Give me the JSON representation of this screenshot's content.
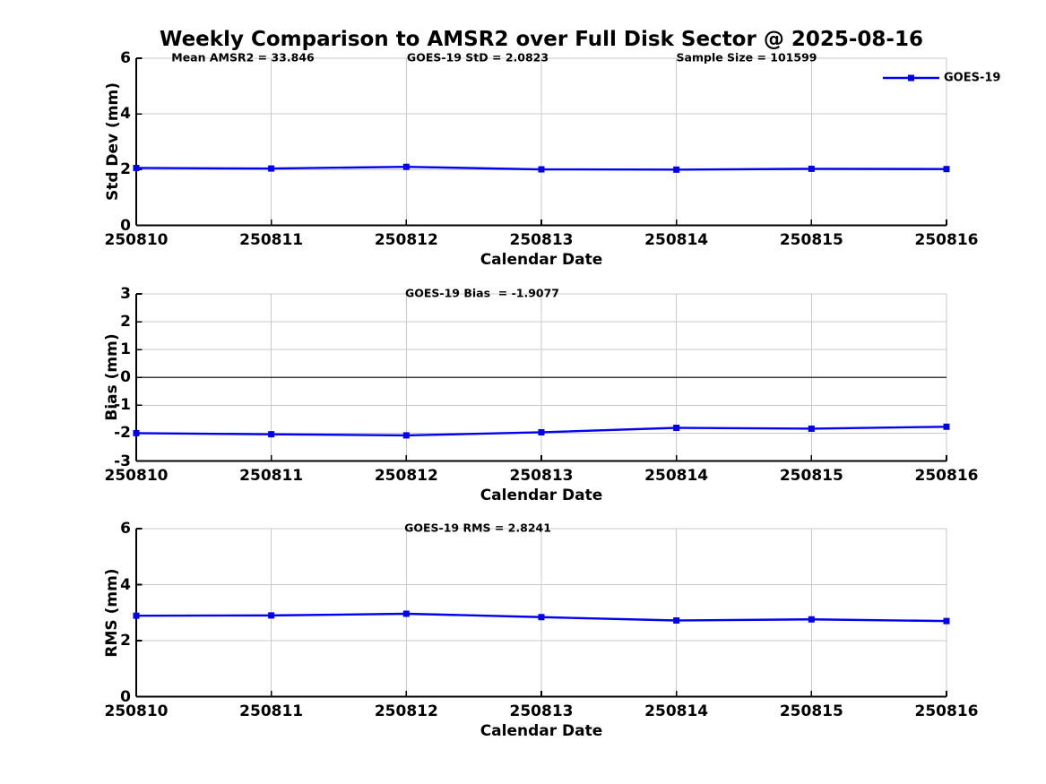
{
  "title": "Weekly Comparison to AMSR2 over Full Disk Sector @ 2025-08-16",
  "legend": {
    "label": "GOES-19"
  },
  "colors": {
    "line": "#0000ee",
    "marker": "#0000ee",
    "grid": "#c9c9c9",
    "zero_line": "#3a3a3a",
    "axis": "#000000",
    "text": "#000000",
    "background": "#ffffff"
  },
  "chart_data": [
    {
      "type": "line",
      "annotations": [
        "Mean AMSR2 = 33.846",
        "GOES-19 StD = 2.0823",
        "Sample Size = 101599"
      ],
      "xlabel": "Calendar Date",
      "ylabel": "Std Dev (mm)",
      "x": [
        "250810",
        "250811",
        "250812",
        "250813",
        "250814",
        "250815",
        "250816"
      ],
      "series": [
        {
          "name": "GOES-19",
          "values": [
            2.06,
            2.04,
            2.1,
            2.01,
            2.0,
            2.03,
            2.02
          ]
        }
      ],
      "ylim": [
        0,
        6
      ],
      "yticks": [
        0,
        2,
        4,
        6
      ],
      "grid": true,
      "legend_position": "top-right-outside"
    },
    {
      "type": "line",
      "annotations": [
        "GOES-19 Bias  = -1.9077"
      ],
      "xlabel": "Calendar Date",
      "ylabel": "Bias (mm)",
      "x": [
        "250810",
        "250811",
        "250812",
        "250813",
        "250814",
        "250815",
        "250816"
      ],
      "series": [
        {
          "name": "GOES-19",
          "values": [
            -2.0,
            -2.04,
            -2.08,
            -1.97,
            -1.81,
            -1.84,
            -1.77
          ]
        }
      ],
      "ylim": [
        -3,
        3
      ],
      "yticks": [
        -3,
        -2,
        -1,
        0,
        1,
        2,
        3
      ],
      "zero_line": true,
      "grid": true
    },
    {
      "type": "line",
      "annotations": [
        "GOES-19 RMS = 2.8241"
      ],
      "xlabel": "Calendar Date",
      "ylabel": "RMS (mm)",
      "x": [
        "250810",
        "250811",
        "250812",
        "250813",
        "250814",
        "250815",
        "250816"
      ],
      "series": [
        {
          "name": "GOES-19",
          "values": [
            2.89,
            2.9,
            2.96,
            2.84,
            2.72,
            2.76,
            2.7
          ]
        }
      ],
      "ylim": [
        0,
        6
      ],
      "yticks": [
        0,
        2,
        4,
        6
      ],
      "grid": true
    }
  ]
}
